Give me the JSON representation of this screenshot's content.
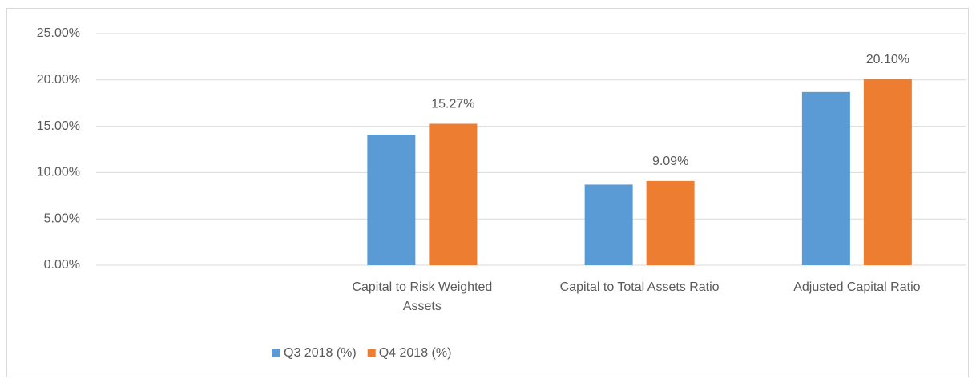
{
  "chart_data": {
    "type": "bar",
    "categories": [
      null,
      "Capital to Risk Weighted Assets",
      "Capital to Total Assets Ratio",
      "Adjusted Capital Ratio"
    ],
    "series": [
      {
        "name": "Q3 2018 (%)",
        "color": "#5b9bd5",
        "values": [
          null,
          14.1,
          8.7,
          18.7
        ]
      },
      {
        "name": "Q4 2018 (%)",
        "color": "#ed7d31",
        "values": [
          null,
          15.27,
          9.09,
          20.1
        ],
        "value_labels": [
          null,
          "15.27%",
          "9.09%",
          "20.10%"
        ]
      }
    ],
    "ylim": [
      0,
      25
    ],
    "yticks": [
      {
        "value": 0,
        "label": "0.00%"
      },
      {
        "value": 5,
        "label": "5.00%"
      },
      {
        "value": 10,
        "label": "10.00%"
      },
      {
        "value": 15,
        "label": "15.00%"
      },
      {
        "value": 20,
        "label": "20.00%"
      },
      {
        "value": 25,
        "label": "25.00%"
      }
    ],
    "grid": true,
    "legend": "bottom"
  }
}
